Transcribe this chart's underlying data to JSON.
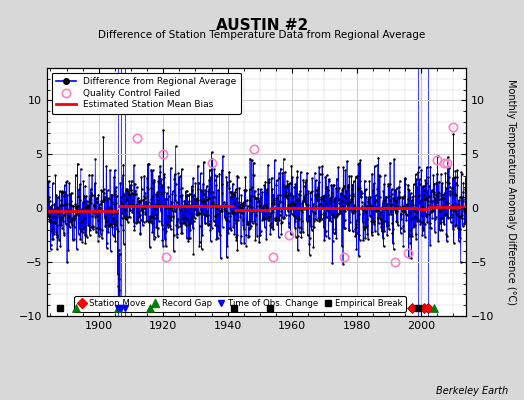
{
  "title": "AUSTIN #2",
  "subtitle": "Difference of Station Temperature Data from Regional Average",
  "ylabel_right": "Monthly Temperature Anomaly Difference (°C)",
  "credit": "Berkeley Earth",
  "xlim": [
    1884,
    2014
  ],
  "ylim": [
    -10,
    13
  ],
  "yticks": [
    -10,
    -5,
    0,
    5,
    10
  ],
  "xticks": [
    1900,
    1920,
    1940,
    1960,
    1980,
    2000
  ],
  "bg_color": "#d8d8d8",
  "plot_bg_color": "#ffffff",
  "grid_color": "#cccccc",
  "seed": 42,
  "bias_segments": [
    {
      "x_start": 1884,
      "x_end": 1906,
      "bias": -0.3
    },
    {
      "x_start": 1906,
      "x_end": 1942,
      "bias": 0.2
    },
    {
      "x_start": 1942,
      "x_end": 1953,
      "bias": -0.15
    },
    {
      "x_start": 1953,
      "x_end": 1999,
      "bias": 0.05
    },
    {
      "x_start": 1999,
      "x_end": 2002,
      "bias": -0.1
    },
    {
      "x_start": 2002,
      "x_end": 2014,
      "bias": 0.15
    }
  ],
  "vertical_lines": [
    1906,
    1907,
    1908,
    1999,
    2000,
    2002
  ],
  "station_moves": [
    1997,
    2001,
    2002
  ],
  "record_gaps": [
    1893,
    1906,
    1916,
    2004
  ],
  "obs_changes": [
    1906,
    1907,
    1908
  ],
  "emp_breaks": [
    1888,
    1942,
    1953,
    1999
  ],
  "qc_failed_approx": [
    1912,
    1920,
    1921,
    1935,
    1948,
    1954,
    1959,
    1976,
    1992,
    1996,
    2005,
    2007,
    2008,
    2010
  ],
  "qc_failed_vals": [
    6.5,
    5.0,
    -4.5,
    4.2,
    5.5,
    -4.5,
    -2.5,
    -4.5,
    -5.0,
    -4.2,
    4.5,
    4.2,
    4.2,
    7.5
  ]
}
